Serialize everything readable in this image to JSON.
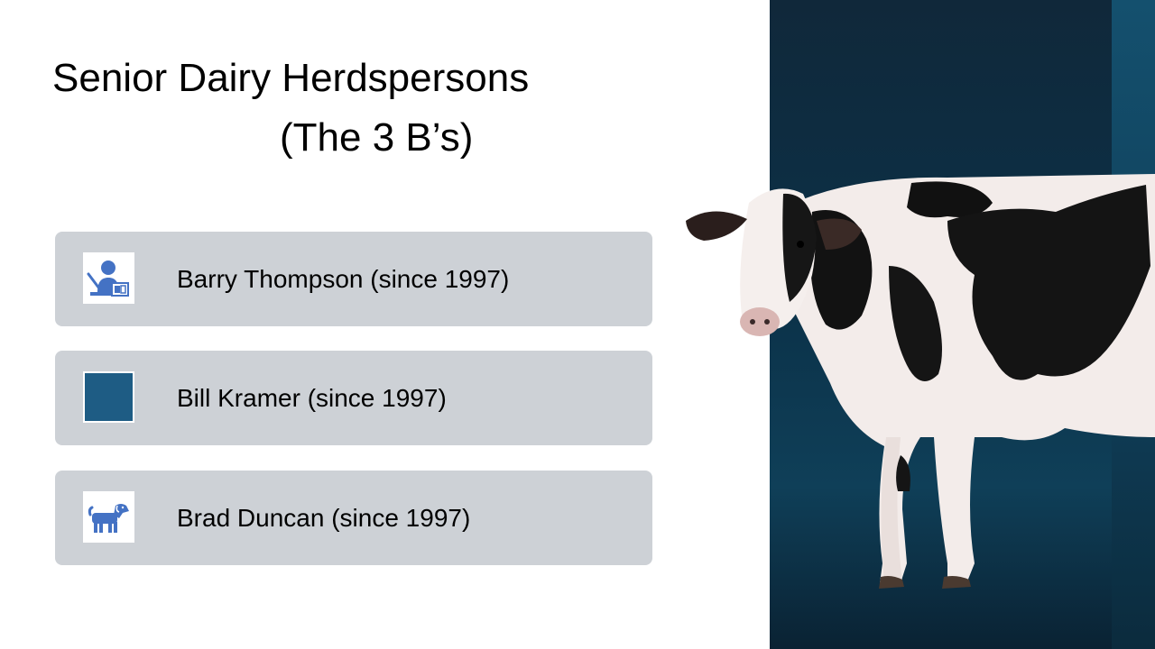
{
  "slide": {
    "title_line1": "Senior Dairy Herdspersons",
    "title_line2": "(The 3 B’s)"
  },
  "cards": [
    {
      "name": "Barry Thompson  (since 1997)",
      "icon": "teacher-icon"
    },
    {
      "name": "Bill Kramer (since 1997)",
      "icon": "blue-square"
    },
    {
      "name": "Brad Duncan (since 1997)",
      "icon": "dog-icon"
    }
  ],
  "colors": {
    "card_bg": "#cdd1d6",
    "icon_blue": "#4472c4",
    "panel_dark": "#0b3148",
    "square_blue": "#1e5c84"
  },
  "image": {
    "subject": "holstein-cow-photo"
  }
}
